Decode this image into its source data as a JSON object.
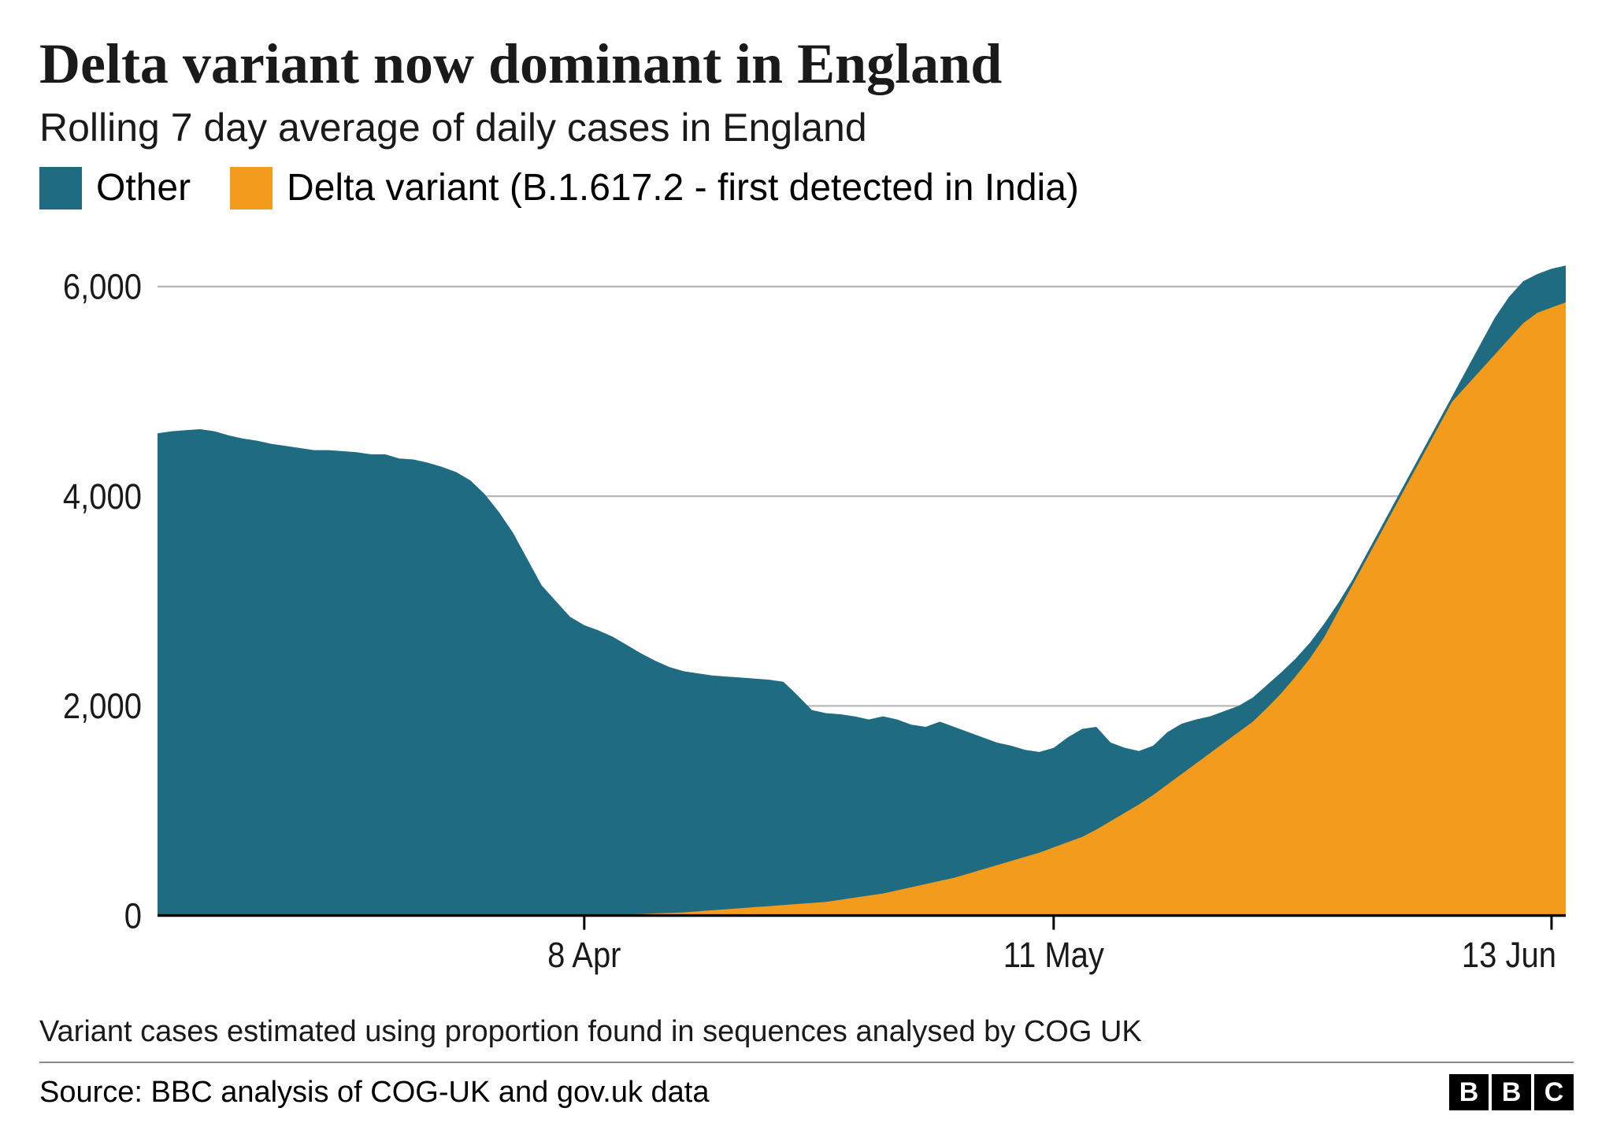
{
  "title": "Delta variant now dominant in England",
  "subtitle": "Rolling 7 day average of daily cases in England",
  "legend": {
    "items": [
      {
        "label": "Other",
        "color": "#1f6b82"
      },
      {
        "label": "Delta variant (B.1.617.2 - first detected in India)",
        "color": "#f39b1d"
      }
    ]
  },
  "chart": {
    "type": "stacked-area",
    "background_color": "#ffffff",
    "grid_color": "#b8b8b8",
    "axis_color": "#000000",
    "ylim": [
      0,
      6200
    ],
    "yticks": [
      0,
      2000,
      4000,
      6000
    ],
    "ytick_labels": [
      "0",
      "2,000",
      "4,000",
      "6,000"
    ],
    "xlim": [
      0,
      99
    ],
    "xticks": [
      30,
      63,
      98
    ],
    "xtick_labels": [
      "8 Apr",
      "11 May",
      "13 Jun"
    ],
    "tick_label_fontsize": 40,
    "series": [
      {
        "name": "delta",
        "color": "#f39b1d",
        "values": [
          0,
          0,
          0,
          0,
          0,
          0,
          0,
          0,
          0,
          0,
          0,
          0,
          0,
          0,
          0,
          0,
          0,
          0,
          0,
          0,
          0,
          0,
          0,
          0,
          0,
          0,
          0,
          0,
          0,
          0,
          0,
          0,
          5,
          10,
          15,
          20,
          25,
          30,
          40,
          50,
          60,
          70,
          80,
          90,
          100,
          110,
          120,
          130,
          150,
          170,
          190,
          210,
          240,
          270,
          300,
          330,
          360,
          400,
          440,
          480,
          520,
          560,
          600,
          650,
          700,
          750,
          820,
          900,
          980,
          1060,
          1150,
          1250,
          1350,
          1450,
          1550,
          1650,
          1750,
          1850,
          1980,
          2120,
          2280,
          2450,
          2650,
          2900,
          3150,
          3400,
          3650,
          3900,
          4150,
          4400,
          4650,
          4900,
          5050,
          5200,
          5350,
          5500,
          5650,
          5750,
          5800,
          5850
        ]
      },
      {
        "name": "other",
        "color": "#1f6b82",
        "values": [
          4600,
          4620,
          4630,
          4640,
          4620,
          4580,
          4550,
          4530,
          4500,
          4480,
          4460,
          4440,
          4440,
          4430,
          4420,
          4400,
          4400,
          4360,
          4350,
          4320,
          4280,
          4230,
          4150,
          4020,
          3850,
          3650,
          3400,
          3150,
          3000,
          2850,
          2770,
          2720,
          2660,
          2580,
          2500,
          2430,
          2370,
          2330,
          2310,
          2290,
          2280,
          2270,
          2260,
          2250,
          2230,
          2100,
          1960,
          1930,
          1920,
          1900,
          1870,
          1900,
          1870,
          1820,
          1800,
          1850,
          1800,
          1750,
          1700,
          1650,
          1620,
          1580,
          1560,
          1600,
          1700,
          1780,
          1800,
          1650,
          1600,
          1570,
          1620,
          1750,
          1830,
          1870,
          1900,
          1950,
          2000,
          2080,
          2200,
          2320,
          2450,
          2600,
          2780,
          2980,
          3200,
          3450,
          3700,
          3950,
          4200,
          4450,
          4700,
          4950,
          5200,
          5450,
          5700,
          5900,
          6050,
          6120,
          6170,
          6200
        ]
      }
    ]
  },
  "footnote": "Variant cases estimated using proportion found in sequences analysed by COG UK",
  "source": "Source: BBC analysis of COG-UK and gov.uk data",
  "logo": {
    "letters": [
      "B",
      "B",
      "C"
    ]
  },
  "typography": {
    "title_fontsize": 72,
    "subtitle_fontsize": 50,
    "legend_fontsize": 48,
    "footnote_fontsize": 38,
    "source_fontsize": 38
  }
}
